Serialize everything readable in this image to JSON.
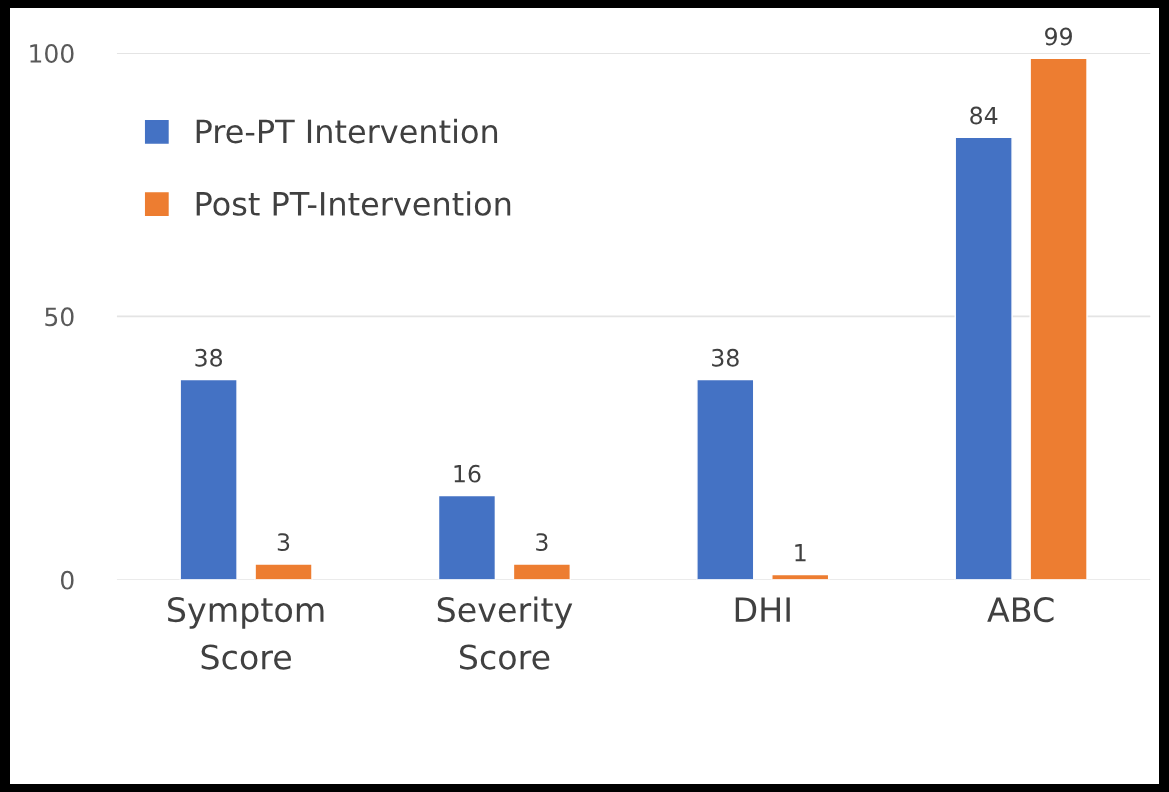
{
  "chart_data": {
    "type": "bar",
    "categories": [
      "Symptom\nScore",
      "Severity\nScore",
      "DHI",
      "ABC"
    ],
    "series": [
      {
        "name": "Pre-PT Intervention",
        "color": "#4472c4",
        "values": [
          38,
          16,
          38,
          84
        ]
      },
      {
        "name": "Post PT-Intervention",
        "color": "#ed7d31",
        "values": [
          3,
          3,
          1,
          99
        ]
      }
    ],
    "ylim": [
      0,
      100
    ],
    "yticks": [
      0,
      50,
      100
    ],
    "grid": "y",
    "legend": "top left",
    "data_labels": true
  }
}
